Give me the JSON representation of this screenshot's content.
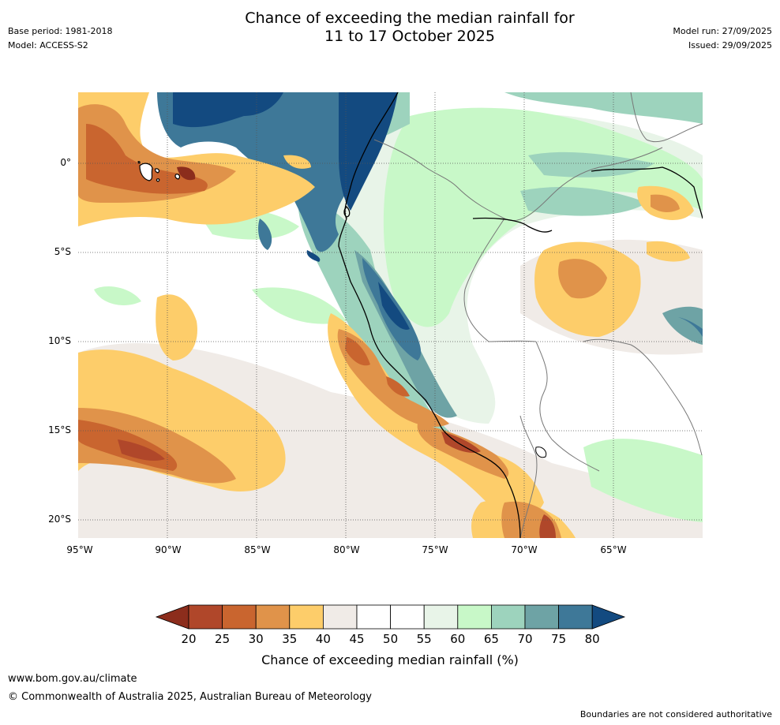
{
  "header": {
    "title_line1": "Chance of exceeding the median rainfall for",
    "title_line2": "11 to 17 October 2025",
    "base_period": "Base period: 1981-2018",
    "model": "Model: ACCESS-S2",
    "model_run": "Model run: 27/09/2025",
    "issued": "Issued: 29/09/2025"
  },
  "map": {
    "lat_labels": [
      "0°",
      "5°S",
      "10°S",
      "15°S",
      "20°S"
    ],
    "lon_labels": [
      "95°W",
      "90°W",
      "85°W",
      "80°W",
      "75°W",
      "70°W",
      "65°W"
    ],
    "regions": [
      {
        "name": "galapagos-dry-zone",
        "category": "20-25"
      },
      {
        "name": "eastern-pacific-dry-band",
        "category": "25-30"
      },
      {
        "name": "colombia-ecuador-wet-zone",
        "category": "75-80"
      },
      {
        "name": "peru-andes-wet-zone",
        "category": "75-80"
      },
      {
        "name": "peru-coast-dry-band",
        "category": "25-30"
      },
      {
        "name": "western-amazon-dry-patch",
        "category": "30-35"
      },
      {
        "name": "altiplano-dry-zone",
        "category": "25-30"
      }
    ]
  },
  "colorbar": {
    "ticks": [
      "20",
      "25",
      "30",
      "35",
      "40",
      "45",
      "50",
      "55",
      "60",
      "65",
      "70",
      "75",
      "80"
    ],
    "colors": [
      "#8c2d1c",
      "#b0472a",
      "#c9652f",
      "#e0934a",
      "#fdcd6a",
      "#f0ebe7",
      "#ffffff",
      "#ffffff",
      "#e8f4e8",
      "#c8f8c8",
      "#9dd3bd",
      "#6ea3a5",
      "#3e7898",
      "#134a80"
    ],
    "title": "Chance of exceeding median rainfall (%)"
  },
  "footer": {
    "url": "www.bom.gov.au/climate",
    "copyright": "© Commonwealth of Australia 2025, Australian Bureau of Meteorology",
    "disclaimer": "Boundaries are not considered authoritative"
  }
}
